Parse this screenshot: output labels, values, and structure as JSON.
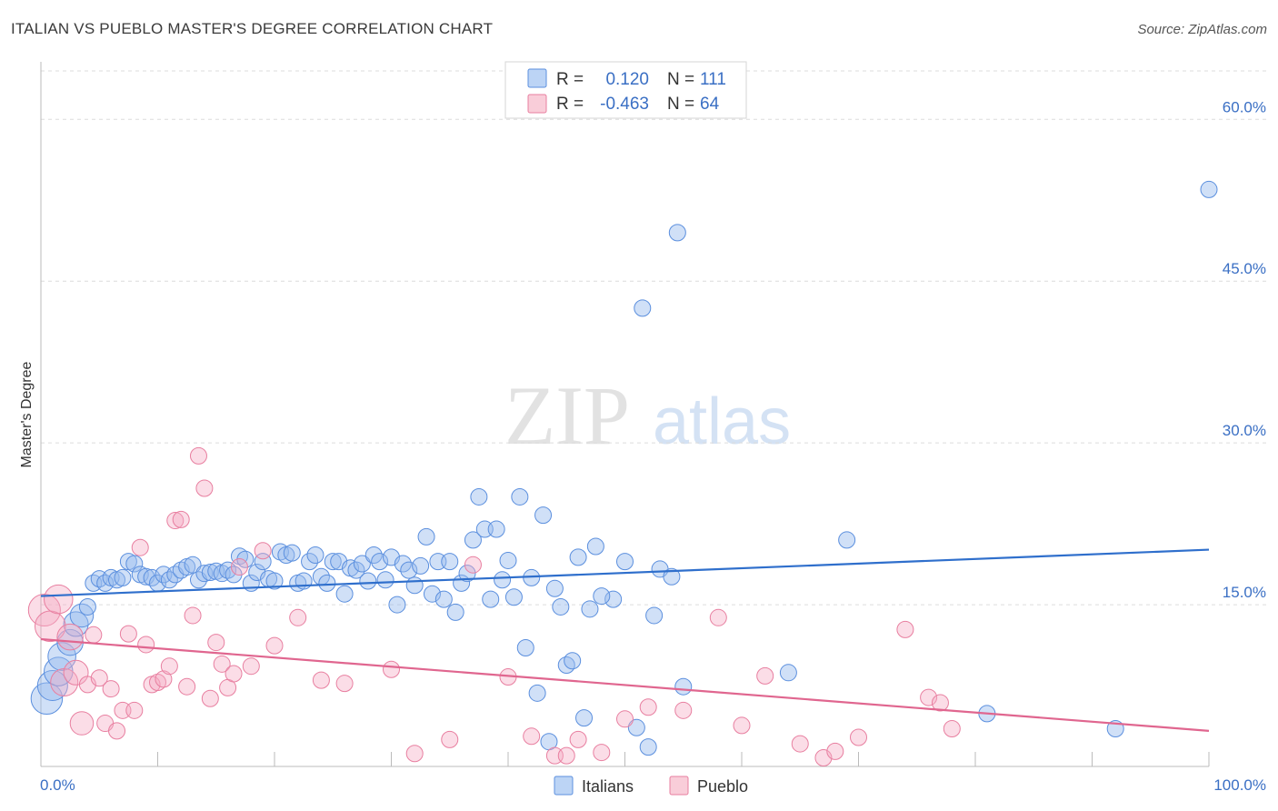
{
  "header": {
    "title": "ITALIAN VS PUEBLO MASTER'S DEGREE CORRELATION CHART",
    "source": "Source: ZipAtlas.com"
  },
  "watermark": {
    "zip": "ZIP",
    "atlas": "atlas"
  },
  "stats_box": {
    "rows": [
      {
        "r_label": "R =",
        "r_value": "0.120",
        "n_label": "N =",
        "n_value": "111",
        "color": "#5b8fde"
      },
      {
        "r_label": "R =",
        "r_value": "-0.463",
        "n_label": "N =",
        "n_value": "64",
        "color": "#e87fa0"
      }
    ]
  },
  "bottom_legend": [
    {
      "label": "Italians",
      "color": "#5b8fde"
    },
    {
      "label": "Pueblo",
      "color": "#e87fa0"
    }
  ],
  "chart_data": {
    "type": "scatter",
    "title": "ITALIAN VS PUEBLO MASTER'S DEGREE CORRELATION CHART",
    "xlabel": "",
    "ylabel": "Master's Degree",
    "xlim": [
      0,
      100
    ],
    "ylim": [
      0,
      65
    ],
    "x_tick_labels": [
      "0.0%",
      "100.0%"
    ],
    "y_ticks": [
      15,
      30,
      45,
      60
    ],
    "y_tick_labels": [
      "15.0%",
      "30.0%",
      "45.0%",
      "60.0%"
    ],
    "grid": true,
    "legend_position": "bottom",
    "series": [
      {
        "name": "Italians",
        "color": "#5b8fde",
        "trend": {
          "x": [
            0,
            100
          ],
          "y": [
            15.8,
            20.1
          ]
        },
        "points": [
          [
            0.5,
            6.3
          ],
          [
            1,
            7.5
          ],
          [
            1.5,
            8.8
          ],
          [
            1.8,
            10.2
          ],
          [
            2.5,
            11.5
          ],
          [
            3,
            13.2
          ],
          [
            3.5,
            14
          ],
          [
            4,
            14.8
          ],
          [
            4.5,
            17
          ],
          [
            5,
            17.4
          ],
          [
            5.5,
            17
          ],
          [
            6,
            17.5
          ],
          [
            6.5,
            17.3
          ],
          [
            7,
            17.5
          ],
          [
            7.5,
            19
          ],
          [
            8,
            18.8
          ],
          [
            8.5,
            17.8
          ],
          [
            9,
            17.6
          ],
          [
            9.5,
            17.5
          ],
          [
            10,
            17
          ],
          [
            10.5,
            17.8
          ],
          [
            11,
            17.3
          ],
          [
            11.5,
            17.8
          ],
          [
            12,
            18.2
          ],
          [
            12.5,
            18.5
          ],
          [
            13,
            18.7
          ],
          [
            13.5,
            17.3
          ],
          [
            14,
            17.9
          ],
          [
            14.5,
            18
          ],
          [
            15,
            18.1
          ],
          [
            15.5,
            17.9
          ],
          [
            16,
            18.2
          ],
          [
            16.5,
            17.8
          ],
          [
            17,
            19.5
          ],
          [
            17.5,
            19.2
          ],
          [
            18,
            17
          ],
          [
            18.5,
            18
          ],
          [
            19,
            19
          ],
          [
            19.5,
            17.4
          ],
          [
            20,
            17.2
          ],
          [
            20.5,
            19.9
          ],
          [
            21,
            19.6
          ],
          [
            21.5,
            19.8
          ],
          [
            22,
            17
          ],
          [
            22.5,
            17.2
          ],
          [
            23,
            19
          ],
          [
            23.5,
            19.6
          ],
          [
            24,
            17.6
          ],
          [
            24.5,
            17
          ],
          [
            25,
            19
          ],
          [
            25.5,
            19
          ],
          [
            26,
            16
          ],
          [
            26.5,
            18.4
          ],
          [
            27,
            18.2
          ],
          [
            27.5,
            18.8
          ],
          [
            28,
            17.2
          ],
          [
            28.5,
            19.6
          ],
          [
            29,
            19
          ],
          [
            29.5,
            17.3
          ],
          [
            30,
            19.4
          ],
          [
            30.5,
            15
          ],
          [
            31,
            18.8
          ],
          [
            31.5,
            18.2
          ],
          [
            32,
            16.8
          ],
          [
            32.5,
            18.6
          ],
          [
            33,
            21.3
          ],
          [
            33.5,
            16
          ],
          [
            34,
            19
          ],
          [
            34.5,
            15.5
          ],
          [
            35,
            19
          ],
          [
            35.5,
            14.3
          ],
          [
            36,
            17
          ],
          [
            36.5,
            17.9
          ],
          [
            37,
            21
          ],
          [
            37.5,
            25
          ],
          [
            38,
            22
          ],
          [
            38.5,
            15.5
          ],
          [
            39,
            22
          ],
          [
            39.5,
            17.3
          ],
          [
            40,
            19.1
          ],
          [
            40.5,
            15.7
          ],
          [
            41,
            25
          ],
          [
            41.5,
            11
          ],
          [
            42,
            17.5
          ],
          [
            42.5,
            6.8
          ],
          [
            43,
            23.3
          ],
          [
            43.5,
            2.3
          ],
          [
            44,
            16.5
          ],
          [
            44.5,
            14.8
          ],
          [
            45,
            9.4
          ],
          [
            45.5,
            9.8
          ],
          [
            46,
            19.4
          ],
          [
            46.5,
            4.5
          ],
          [
            47,
            14.6
          ],
          [
            47.5,
            20.4
          ],
          [
            49,
            15.5
          ],
          [
            50,
            19
          ],
          [
            51,
            3.6
          ],
          [
            51.5,
            42.5
          ],
          [
            52,
            1.8
          ],
          [
            52.5,
            14
          ],
          [
            53,
            18.3
          ],
          [
            54,
            17.6
          ],
          [
            54.5,
            49.5
          ],
          [
            55,
            7.4
          ],
          [
            64,
            8.7
          ],
          [
            69,
            21
          ],
          [
            81,
            4.9
          ],
          [
            92,
            3.5
          ],
          [
            100,
            53.5
          ],
          [
            48,
            15.8
          ]
        ]
      },
      {
        "name": "Pueblo",
        "color": "#e87fa0",
        "trend": {
          "x": [
            0,
            100
          ],
          "y": [
            11.8,
            3.3
          ]
        },
        "points": [
          [
            0.3,
            14.5
          ],
          [
            0.8,
            13
          ],
          [
            1.5,
            15.5
          ],
          [
            2,
            7.8
          ],
          [
            2.5,
            12
          ],
          [
            3,
            8.7
          ],
          [
            3.5,
            4
          ],
          [
            4,
            7.6
          ],
          [
            4.5,
            12.2
          ],
          [
            5,
            8.2
          ],
          [
            5.5,
            4
          ],
          [
            6,
            7.2
          ],
          [
            6.5,
            3.3
          ],
          [
            7,
            5.2
          ],
          [
            7.5,
            12.3
          ],
          [
            8,
            5.2
          ],
          [
            8.5,
            20.3
          ],
          [
            9,
            11.3
          ],
          [
            9.5,
            7.6
          ],
          [
            10,
            7.8
          ],
          [
            10.5,
            8.1
          ],
          [
            11,
            9.3
          ],
          [
            11.5,
            22.8
          ],
          [
            12,
            22.9
          ],
          [
            12.5,
            7.4
          ],
          [
            13,
            14
          ],
          [
            13.5,
            28.8
          ],
          [
            14,
            25.8
          ],
          [
            14.5,
            6.3
          ],
          [
            15,
            11.5
          ],
          [
            15.5,
            9.5
          ],
          [
            16,
            7.3
          ],
          [
            16.5,
            8.6
          ],
          [
            17,
            18.5
          ],
          [
            18,
            9.3
          ],
          [
            19,
            20
          ],
          [
            20,
            11.2
          ],
          [
            22,
            13.8
          ],
          [
            24,
            8
          ],
          [
            26,
            7.7
          ],
          [
            30,
            9
          ],
          [
            32,
            1.2
          ],
          [
            35,
            2.5
          ],
          [
            37,
            18.7
          ],
          [
            40,
            8.3
          ],
          [
            42,
            2.8
          ],
          [
            44,
            1
          ],
          [
            45,
            1
          ],
          [
            46,
            2.5
          ],
          [
            48,
            1.3
          ],
          [
            50,
            4.4
          ],
          [
            52,
            5.5
          ],
          [
            55,
            5.2
          ],
          [
            58,
            13.8
          ],
          [
            60,
            3.8
          ],
          [
            62,
            8.4
          ],
          [
            65,
            2.1
          ],
          [
            67,
            0.8
          ],
          [
            68,
            1.4
          ],
          [
            70,
            2.7
          ],
          [
            74,
            12.7
          ],
          [
            76,
            6.4
          ],
          [
            77,
            5.9
          ],
          [
            78,
            3.5
          ]
        ]
      }
    ]
  }
}
